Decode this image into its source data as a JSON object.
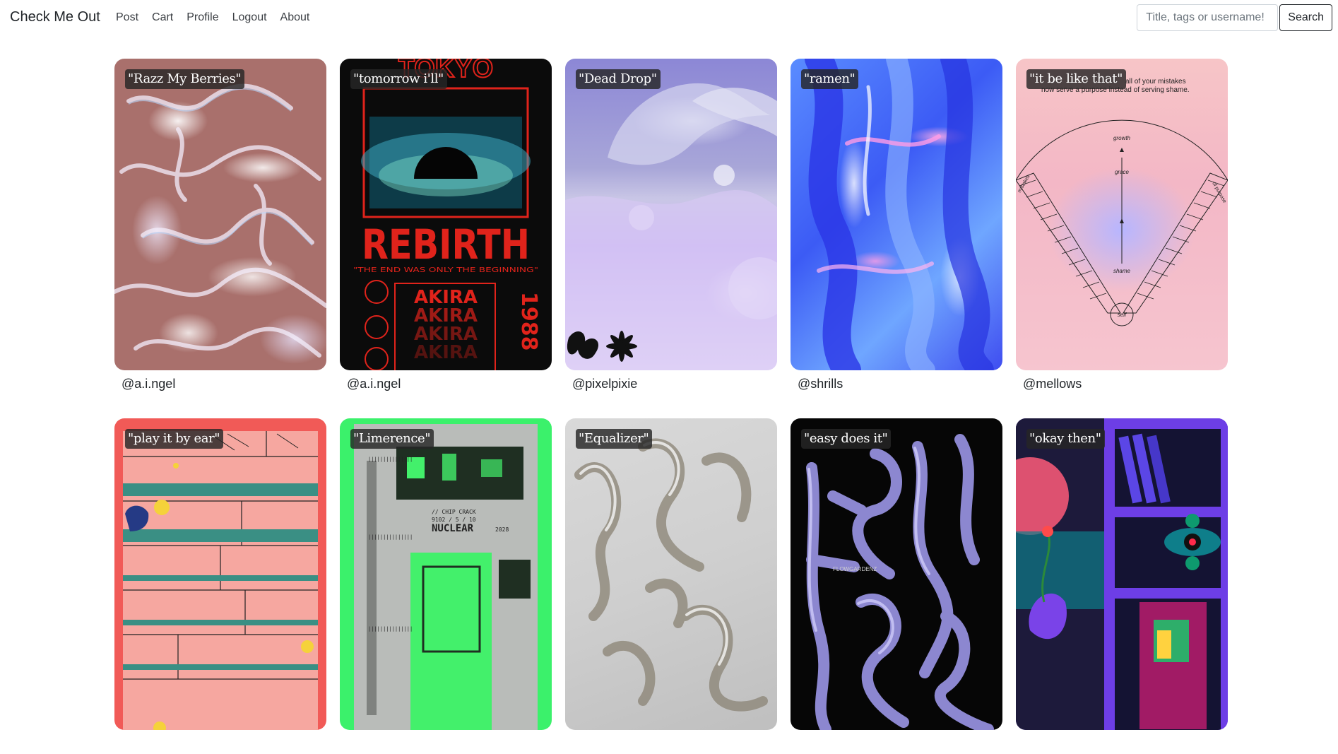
{
  "navbar": {
    "brand": "Check Me Out",
    "links": [
      "Post",
      "Cart",
      "Profile",
      "Logout",
      "About"
    ],
    "search": {
      "placeholder": "Title, tags or username!",
      "value": "",
      "button_label": "Search"
    }
  },
  "posts": [
    {
      "title": "\"Razz My Berries\"",
      "username": "@a.i.ngel"
    },
    {
      "title": "\"tomorrow i'll\"",
      "username": "@a.i.ngel",
      "art_text": {
        "top": "TOKYO",
        "headline": "REBIRTH",
        "tagline": "\"THE END WAS ONLY THE BEGINNING\"",
        "repeat": "AKIRA",
        "year": "1988"
      }
    },
    {
      "title": "\"Dead Drop\"",
      "username": "@pixelpixie"
    },
    {
      "title": "\"ramen\"",
      "username": "@shrills"
    },
    {
      "title": "\"it be like that\"",
      "username": "@mellows",
      "art_text": {
        "quote_line1": "all of your mistakes",
        "quote_line2": "now serve a purpose instead of serving shame.",
        "growth": "growth",
        "grace": "grace",
        "shame": "shame",
        "self": "self",
        "mistakes": "mistakes",
        "purpose": "of purpose"
      }
    },
    {
      "title": "\"play it by ear\"",
      "username": ""
    },
    {
      "title": "\"Limerence\"",
      "username": "",
      "art_text": {
        "headline": "NUCLEAR",
        "chip": "// CHIP CRACK",
        "code": "9102 / 5 / 10",
        "year": "2028"
      }
    },
    {
      "title": "\"Equalizer\"",
      "username": ""
    },
    {
      "title": "\"easy does it\"",
      "username": "",
      "art_text": {
        "brand": "FLOWGARDENZ"
      }
    },
    {
      "title": "\"okay then\"",
      "username": ""
    }
  ]
}
